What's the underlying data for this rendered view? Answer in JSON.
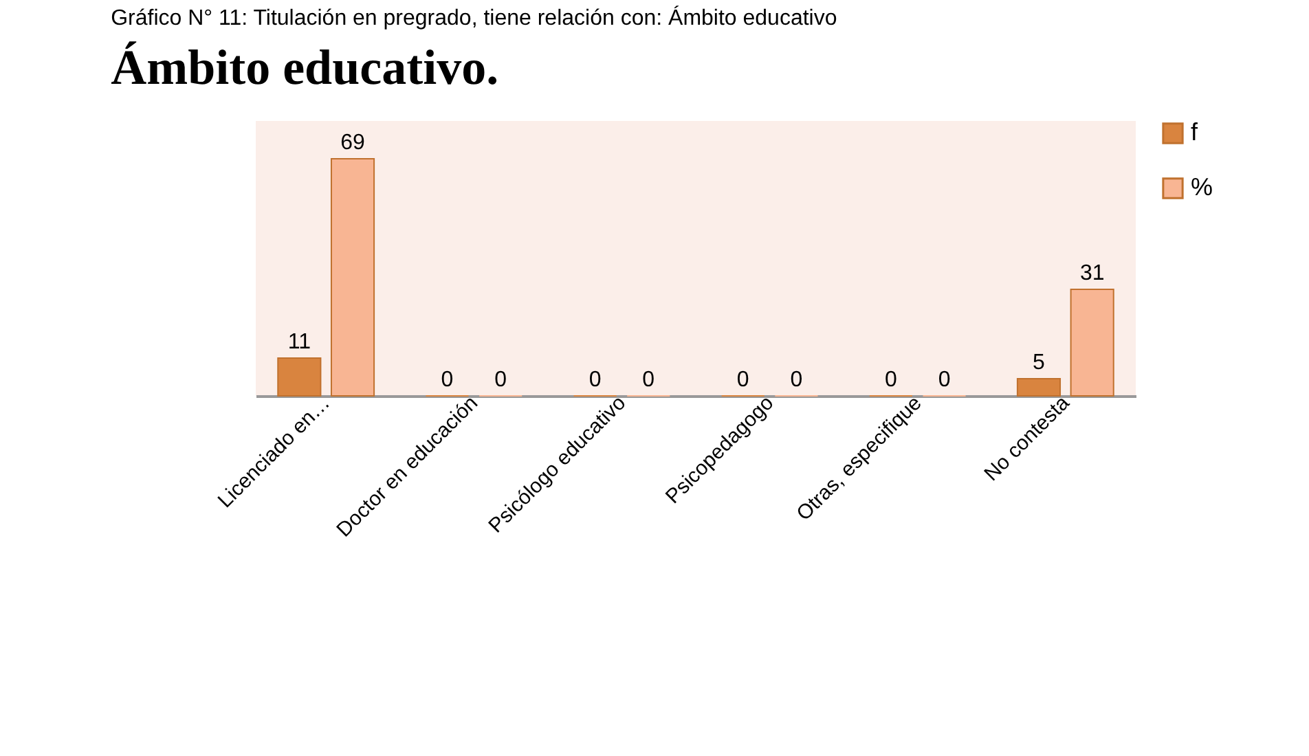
{
  "chart_data": {
    "type": "bar",
    "title": "Ámbito educativo.",
    "annotations": [
      "Gráfico N° 11: Titulación en pregrado, tiene relación con: Ámbito educativo"
    ],
    "categories": [
      "Licenciado en…",
      "Doctor en educación",
      "Psicólogo educativo",
      "Psicopedagogo",
      "Otras, especifique",
      "No contesta"
    ],
    "series": [
      {
        "name": "f",
        "color": "#d9843f",
        "values": [
          11,
          0,
          0,
          0,
          0,
          5
        ]
      },
      {
        "name": "%",
        "color": "#f8b593",
        "values": [
          69,
          0,
          0,
          0,
          0,
          31
        ]
      }
    ],
    "data_labels": true,
    "legend": "right",
    "grid": false
  }
}
